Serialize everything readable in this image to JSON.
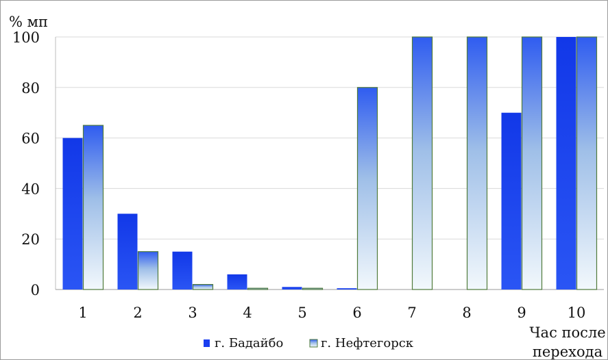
{
  "chart_data": {
    "type": "bar",
    "ylabel": "% мп",
    "xlabel": "Час после перехода",
    "xlabel_lines": [
      "Час после",
      "перехода"
    ],
    "categories": [
      "1",
      "2",
      "3",
      "4",
      "5",
      "6",
      "7",
      "8",
      "9",
      "10"
    ],
    "ylim": [
      0,
      100
    ],
    "yticks": [
      0,
      20,
      40,
      60,
      80,
      100
    ],
    "grid": true,
    "legend_position": "bottom",
    "series": [
      {
        "name": "г. Бадайбо",
        "values": [
          60,
          30,
          15,
          6,
          1,
          0.5,
          0,
          0,
          70,
          100
        ],
        "color": "#1a3ef0"
      },
      {
        "name": "г. Нефтегорск",
        "values": [
          65,
          15,
          2,
          0.5,
          0.5,
          80,
          100,
          100,
          100,
          100
        ],
        "color_top": "#2f5cf0",
        "color_bottom": "#f2f8fc",
        "border": "#4f7a3a"
      }
    ]
  }
}
